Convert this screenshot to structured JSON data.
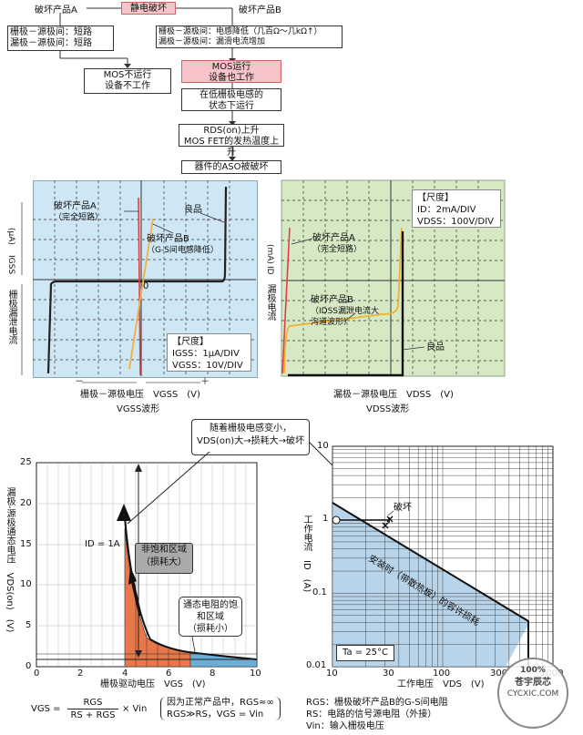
{
  "flow": {
    "top": "静电破坏",
    "product_a": "破坏产品A",
    "product_b": "破坏产品B",
    "a_box": [
      "栅极－源极间：短路",
      "漏极－源极间：短路"
    ],
    "a_result": [
      "MOS不运行",
      "设备不工作"
    ],
    "b_box": [
      "栅极－源极间：电感降低（几百Ω～几kΩ↑）",
      "漏极－源极间：漏滑电流增加"
    ],
    "b_result": [
      "MOS运行",
      "设备也工作"
    ],
    "step1": [
      "在低栅极电感的",
      "状态下运行"
    ],
    "step2": [
      "RDS(on)上升",
      "MOS FET的发热温度上升"
    ],
    "step3": "器件的ASO被破坏"
  },
  "scope_left": {
    "product_a": [
      "破坏产品A",
      "（完全短路）"
    ],
    "good": "良品",
    "product_b": [
      "破坏产品B",
      "（G-S间电感降低）"
    ],
    "zero": "0",
    "scale_title": "【尺度】",
    "scale_1": "IGSS：1μA/DIV",
    "scale_2": "VGSS：10V/DIV",
    "y_label_unit": "(μA)",
    "y_label_sym": "IGSS",
    "y_label_name": "栅极漏泄电流",
    "x_label": "栅极－源极电压　VGSS　(V)",
    "x_wave": "VGSS波形",
    "minus": "－",
    "plus": "＋"
  },
  "scope_right": {
    "scale_title": "【尺度】",
    "scale_1": "ID：2mA/DIV",
    "scale_2": "VDSS：100V/DIV",
    "product_a": [
      "破坏产品A",
      "（完全短路）"
    ],
    "product_b": [
      "破坏产品B",
      "（IDSS漏泄电流大",
      "沟道波形）"
    ],
    "good": "良品",
    "y_label_unit": "(mA)",
    "y_label_sym": "ID",
    "y_label_name": "漏极电流",
    "x_label": "漏极－源极电压　VDSS　(V)",
    "x_wave": "VDSS波形"
  },
  "callout": [
    "随着栅极电感变小，",
    "VDS(on)大→损耗大→破坏"
  ],
  "chart_left": {
    "y_ticks": [
      "25",
      "20",
      "15",
      "10",
      "5",
      "0"
    ],
    "x_ticks": [
      "0",
      "2",
      "4",
      "6",
      "8",
      "10"
    ],
    "y_label": "漏极-源极通态电压　VDS(on)　(V)",
    "x_label": "栅极驱动电压　VGS　(V)",
    "id_label": "ID = 1A",
    "region1": [
      "非饱和区域",
      "（损耗大）"
    ],
    "region2": [
      "通态电阻的饱",
      "和区域",
      "（损耗小）"
    ]
  },
  "chart_right": {
    "y_ticks": [
      "10",
      "1",
      "0.1",
      "0.01"
    ],
    "x_ticks": [
      "10",
      "30",
      "100",
      "300",
      "1000"
    ],
    "y_label": "工作电流　ID　(A)",
    "x_label": "工作电压　VDS　(V)",
    "break_label": "破坏",
    "diag_label": "安装时（带散热板）的容许损耗",
    "ta": "Ta = 25°C"
  },
  "formula": {
    "lhs": "VGS =",
    "num": "RGS",
    "den": "RS + RGS",
    "rhs": "× Vin",
    "cond1": "因为正常产品中，RGS≈∞",
    "cond2": "RGS≫RS，VGS = Vin"
  },
  "legend": [
    "RGS：栅极破坏产品B的G-S间电阻",
    "RS：电路的信号源电阻（外接）",
    "Vin：输入栅极电压"
  ],
  "watermark": {
    "top": "100%",
    "name": "苍宇辰芯",
    "url": "CYCXIC.COM"
  }
}
